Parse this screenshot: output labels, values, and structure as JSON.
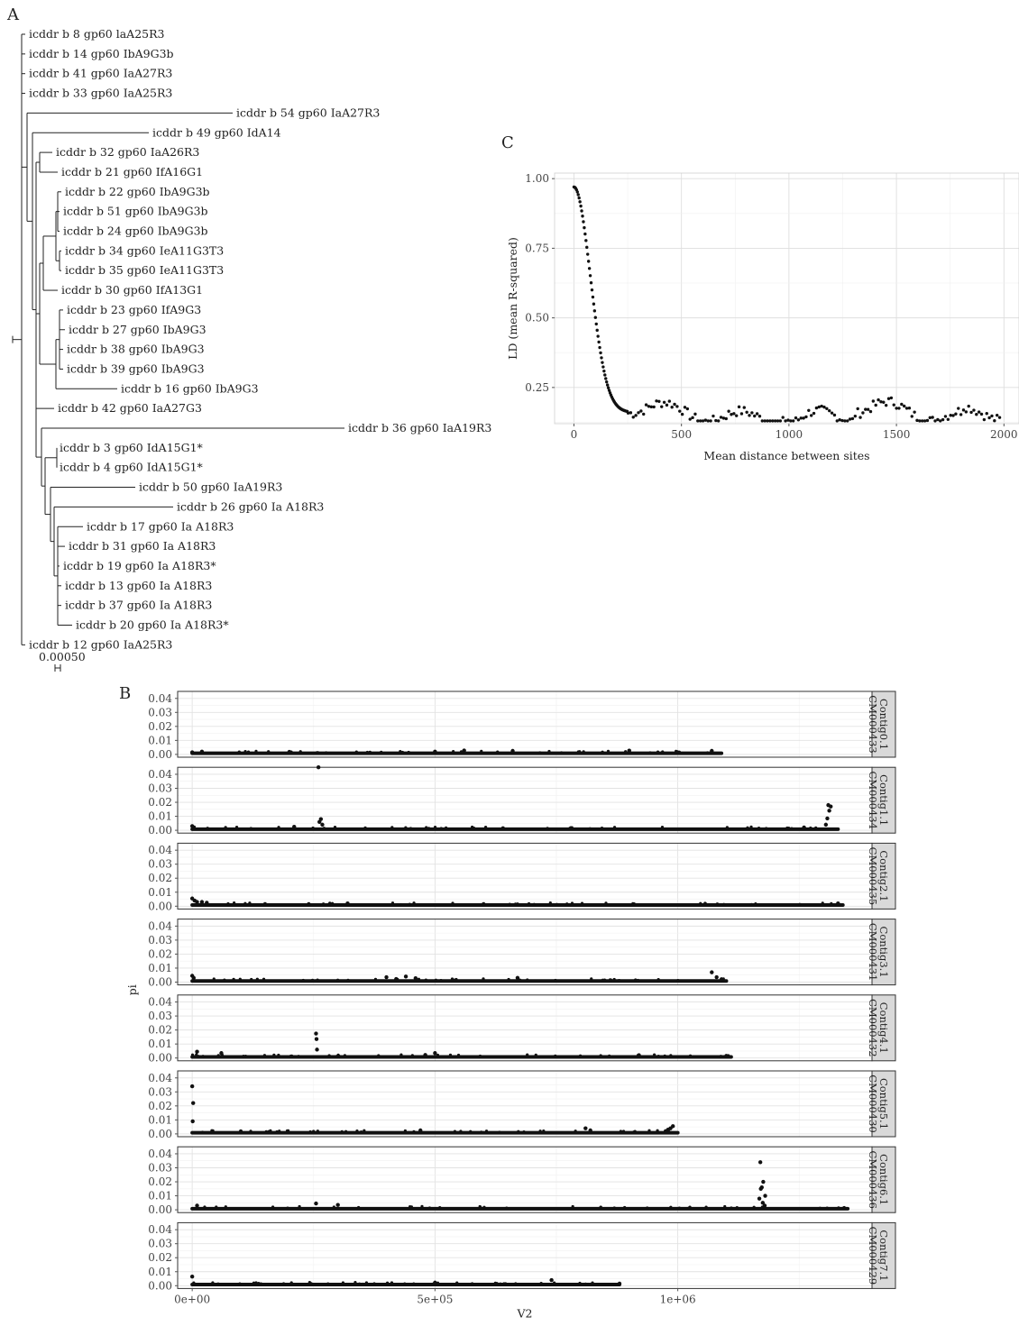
{
  "panels": {
    "A": "A",
    "B": "B",
    "C": "C"
  },
  "tree": {
    "scale_label": "0.00050",
    "tips": [
      "icddr b 8 gp60 laA25R3",
      "icddr b 14 gp60 IbA9G3b",
      "icddr b 41 gp60 IaA27R3",
      "icddr b 33 gp60 IaA25R3",
      "icddr b 54 gp60 IaA27R3",
      "icddr b 49 gp60 IdA14",
      "icddr b 32 gp60 IaA26R3",
      "icddr b 21 gp60 IfA16G1",
      "icddr b 22 gp60 IbA9G3b",
      "icddr b 51 gp60 IbA9G3b",
      "icddr b 24 gp60 IbA9G3b",
      "icddr b 34 gp60 IeA11G3T3",
      "icddr b 35 gp60 IeA11G3T3",
      "icddr b 30 gp60 IfA13G1",
      "icddr b 23 gp60 IfA9G3",
      "icddr b 27 gp60 IbA9G3",
      "icddr b 38 gp60 IbA9G3",
      "icddr b 39 gp60 IbA9G3",
      "icddr b 16 gp60 IbA9G3",
      "icddr b 42 gp60 IaA27G3",
      "icddr b 36 gp60 IaA19R3",
      "icddr b 3 gp60 IdA15G1*",
      "icddr b 4 gp60 IdA15G1*",
      "icddr b 50 gp60 IaA19R3",
      "icddr b 26 gp60 Ia A18R3",
      "icddr b 17 gp60 Ia A18R3",
      "icddr b 31 gp60 Ia A18R3",
      "icddr b 19 gp60 Ia A18R3*",
      "icddr b 13 gp60 Ia A18R3",
      "icddr b 37 gp60 Ia A18R3",
      "icddr b 20 gp60 Ia A18R3*",
      "icddr b 12 gp60 IaA25R3"
    ]
  },
  "chart_data": [
    {
      "panel": "B",
      "type": "scatter",
      "xlabel": "V2",
      "ylabel": "pi",
      "x_ticks": [
        "0e+00",
        "5e+05",
        "1e+06"
      ],
      "x_tick_values": [
        0,
        500000,
        1000000
      ],
      "xlim": [
        -30000,
        1400000
      ],
      "y_ticks": [
        "0.00",
        "0.01",
        "0.02",
        "0.03",
        "0.04"
      ],
      "ylim": [
        -0.002,
        0.045
      ],
      "grid": true,
      "baseline": 0.0008,
      "facets": [
        {
          "strip": "Contig0.1 CM000433",
          "x_max": 1090000,
          "points": [
            [
              0,
              0.0015
            ],
            [
              20000,
              0.002
            ],
            [
              200000,
              0.0018
            ],
            [
              500000,
              0.002
            ],
            [
              560000,
              0.0028
            ],
            [
              660000,
              0.0025
            ],
            [
              900000,
              0.0027
            ],
            [
              1070000,
              0.0025
            ]
          ]
        },
        {
          "strip": "Contig1.1 CM000434",
          "x_max": 1330000,
          "points": [
            [
              0,
              0.003
            ],
            [
              210000,
              0.0025
            ],
            [
              260000,
              0.045
            ],
            [
              265000,
              0.008
            ],
            [
              262000,
              0.006
            ],
            [
              268000,
              0.004
            ],
            [
              640000,
              0.0015
            ],
            [
              1260000,
              0.002
            ],
            [
              1310000,
              0.018
            ],
            [
              1312000,
              0.014
            ],
            [
              1308000,
              0.0085
            ],
            [
              1315000,
              0.017
            ],
            [
              1305000,
              0.004
            ]
          ]
        },
        {
          "strip": "Contig2.1 CM000435",
          "x_max": 1340000,
          "points": [
            [
              0,
              0.0055
            ],
            [
              5000,
              0.004
            ],
            [
              10000,
              0.003
            ],
            [
              20000,
              0.003
            ],
            [
              30000,
              0.0025
            ],
            [
              150000,
              0.0015
            ],
            [
              320000,
              0.002
            ],
            [
              600000,
              0.0015
            ],
            [
              1330000,
              0.002
            ]
          ]
        },
        {
          "strip": "Contig3.1 CM000431",
          "x_max": 1100000,
          "points": [
            [
              0,
              0.0045
            ],
            [
              3000,
              0.003
            ],
            [
              400000,
              0.0035
            ],
            [
              420000,
              0.0022
            ],
            [
              440000,
              0.004
            ],
            [
              460000,
              0.0028
            ],
            [
              670000,
              0.003
            ],
            [
              1070000,
              0.007
            ],
            [
              1080000,
              0.0035
            ],
            [
              1090000,
              0.002
            ]
          ]
        },
        {
          "strip": "Contig4.1 CM000432",
          "x_max": 1110000,
          "points": [
            [
              10000,
              0.0045
            ],
            [
              60000,
              0.0035
            ],
            [
              255000,
              0.0175
            ],
            [
              256000,
              0.0135
            ],
            [
              257000,
              0.006
            ],
            [
              480000,
              0.0022
            ],
            [
              500000,
              0.0035
            ],
            [
              920000,
              0.002
            ],
            [
              1100000,
              0.0015
            ]
          ]
        },
        {
          "strip": "Contig5.1 CM000430",
          "x_max": 1000000,
          "points": [
            [
              0,
              0.034
            ],
            [
              2000,
              0.022
            ],
            [
              1000,
              0.009
            ],
            [
              100000,
              0.0018
            ],
            [
              470000,
              0.0025
            ],
            [
              810000,
              0.004
            ],
            [
              820000,
              0.0025
            ],
            [
              990000,
              0.0055
            ],
            [
              985000,
              0.004
            ],
            [
              980000,
              0.003
            ],
            [
              975000,
              0.002
            ]
          ]
        },
        {
          "strip": "Contig6.1 CM000436",
          "x_max": 1350000,
          "points": [
            [
              10000,
              0.003
            ],
            [
              255000,
              0.0045
            ],
            [
              300000,
              0.0035
            ],
            [
              1170000,
              0.034
            ],
            [
              1176000,
              0.02
            ],
            [
              1173000,
              0.016
            ],
            [
              1171000,
              0.015
            ],
            [
              1168000,
              0.008
            ],
            [
              1180000,
              0.01
            ],
            [
              1175000,
              0.005
            ],
            [
              1179000,
              0.003
            ]
          ]
        },
        {
          "strip": "Contig7.1 CM000429",
          "x_max": 880000,
          "points": [
            [
              0,
              0.0065
            ],
            [
              500000,
              0.0022
            ],
            [
              740000,
              0.004
            ],
            [
              880000,
              0.0015
            ]
          ]
        }
      ]
    },
    {
      "panel": "C",
      "type": "scatter",
      "xlabel": "Mean distance between sites",
      "ylabel": "LD (mean R-squared)",
      "x_ticks": [
        "0",
        "500",
        "1000",
        "1500",
        "2000"
      ],
      "x_tick_values": [
        0,
        500,
        1000,
        1500,
        2000
      ],
      "xlim": [
        -90,
        2070
      ],
      "y_ticks": [
        "0.25",
        "0.50",
        "0.75",
        "1.00"
      ],
      "y_tick_values": [
        0.25,
        0.5,
        0.75,
        1.0
      ],
      "ylim": [
        0.12,
        1.02
      ],
      "grid": true,
      "model": {
        "y_min": 0.16,
        "y_max": 0.97,
        "decay_scale": 90,
        "noise": 0.018,
        "x_from": 0,
        "x_to": 1980,
        "step": 12
      }
    }
  ]
}
